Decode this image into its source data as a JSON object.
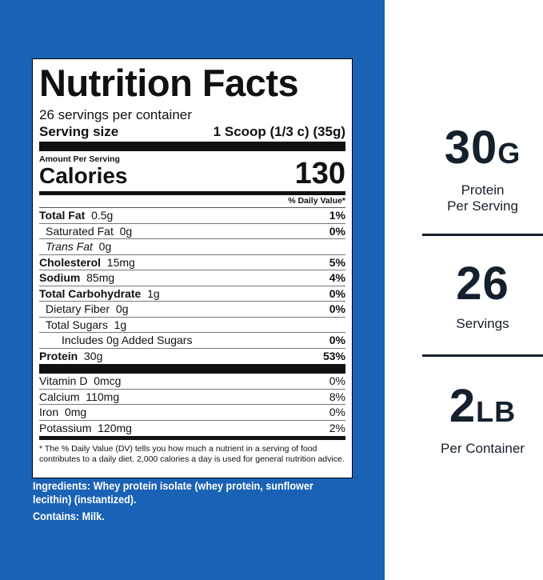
{
  "label": {
    "title": "Nutrition Facts",
    "servings_per_container": "26 servings per container",
    "serving_size_label": "Serving size",
    "serving_size_value": "1 Scoop (1/3 c) (35g)",
    "amount_per_serving": "Amount Per Serving",
    "calories_label": "Calories",
    "calories_value": "130",
    "dv_header": "% Daily Value*",
    "nutrients": [
      {
        "name": "Total Fat",
        "amount": "0.5g",
        "dv": "1%"
      },
      {
        "name": "Saturated Fat",
        "amount": "0g",
        "dv": "0%"
      },
      {
        "name": "Trans Fat",
        "amount": "0g",
        "dv": ""
      },
      {
        "name": "Cholesterol",
        "amount": "15mg",
        "dv": "5%"
      },
      {
        "name": "Sodium",
        "amount": "85mg",
        "dv": "4%"
      },
      {
        "name": "Total Carbohydrate",
        "amount": "1g",
        "dv": "0%"
      },
      {
        "name": "Dietary Fiber",
        "amount": "0g",
        "dv": "0%"
      },
      {
        "name": "Total Sugars",
        "amount": "1g",
        "dv": ""
      },
      {
        "name": "Includes 0g Added Sugars",
        "amount": "",
        "dv": "0%"
      },
      {
        "name": "Protein",
        "amount": "30g",
        "dv": "53%"
      }
    ],
    "vitamins": [
      {
        "name": "Vitamin D",
        "amount": "0mcg",
        "dv": "0%"
      },
      {
        "name": "Calcium",
        "amount": "110mg",
        "dv": "8%"
      },
      {
        "name": "Iron",
        "amount": "0mg",
        "dv": "0%"
      },
      {
        "name": "Potassium",
        "amount": "120mg",
        "dv": "2%"
      }
    ],
    "footnote": "* The % Daily Value (DV) tells you how much a nutrient in a serving of food contributes to a daily diet. 2,000 calories a day is used for general nutrition advice."
  },
  "ingredients": "Ingredients: Whey protein isolate (whey protein, sunflower lecithin) (instantized).",
  "contains": "Contains: Milk.",
  "stats": [
    {
      "value": "30",
      "unit": "G",
      "label1": "Protein",
      "label2": "Per Serving"
    },
    {
      "value": "26",
      "unit": "",
      "label1": "Servings",
      "label2": ""
    },
    {
      "value": "2",
      "unit": "LB",
      "label1": "Per Container",
      "label2": ""
    }
  ],
  "colors": {
    "background": "#1a62b5",
    "stat_text": "#14202c"
  }
}
